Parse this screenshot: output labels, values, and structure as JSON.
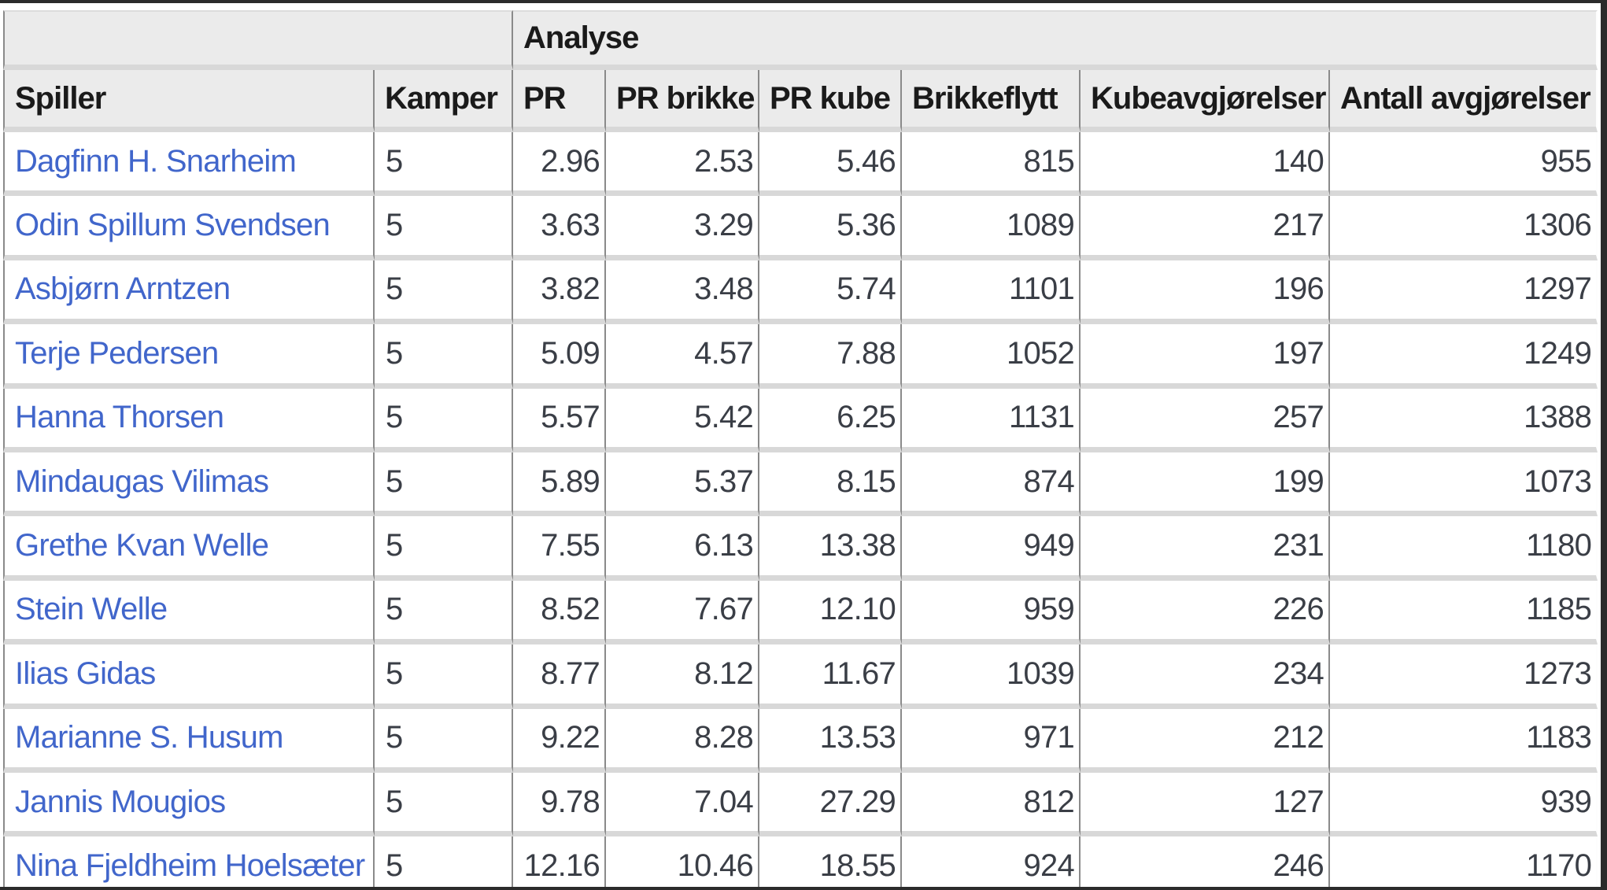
{
  "table": {
    "group_header": {
      "label": "Analyse"
    },
    "columns": [
      {
        "label": "Spiller"
      },
      {
        "label": "Kamper"
      },
      {
        "label": "PR"
      },
      {
        "label": "PR brikke"
      },
      {
        "label": "PR kube"
      },
      {
        "label": "Brikkeflytt"
      },
      {
        "label": "Kubeavgjørelser"
      },
      {
        "label": "Antall avgjørelser"
      }
    ],
    "rows": [
      {
        "spiller": "Dagfinn H. Snarheim",
        "kamper": "5",
        "pr": "2.96",
        "pr_brikke": "2.53",
        "pr_kube": "5.46",
        "brikkeflytt": "815",
        "kubeavgjorelser": "140",
        "antall_avgjorelser": "955"
      },
      {
        "spiller": "Odin Spillum Svendsen",
        "kamper": "5",
        "pr": "3.63",
        "pr_brikke": "3.29",
        "pr_kube": "5.36",
        "brikkeflytt": "1089",
        "kubeavgjorelser": "217",
        "antall_avgjorelser": "1306"
      },
      {
        "spiller": "Asbjørn Arntzen",
        "kamper": "5",
        "pr": "3.82",
        "pr_brikke": "3.48",
        "pr_kube": "5.74",
        "brikkeflytt": "1101",
        "kubeavgjorelser": "196",
        "antall_avgjorelser": "1297"
      },
      {
        "spiller": "Terje Pedersen",
        "kamper": "5",
        "pr": "5.09",
        "pr_brikke": "4.57",
        "pr_kube": "7.88",
        "brikkeflytt": "1052",
        "kubeavgjorelser": "197",
        "antall_avgjorelser": "1249"
      },
      {
        "spiller": "Hanna Thorsen",
        "kamper": "5",
        "pr": "5.57",
        "pr_brikke": "5.42",
        "pr_kube": "6.25",
        "brikkeflytt": "1131",
        "kubeavgjorelser": "257",
        "antall_avgjorelser": "1388"
      },
      {
        "spiller": "Mindaugas Vilimas",
        "kamper": "5",
        "pr": "5.89",
        "pr_brikke": "5.37",
        "pr_kube": "8.15",
        "brikkeflytt": "874",
        "kubeavgjorelser": "199",
        "antall_avgjorelser": "1073"
      },
      {
        "spiller": "Grethe Kvan Welle",
        "kamper": "5",
        "pr": "7.55",
        "pr_brikke": "6.13",
        "pr_kube": "13.38",
        "brikkeflytt": "949",
        "kubeavgjorelser": "231",
        "antall_avgjorelser": "1180"
      },
      {
        "spiller": "Stein Welle",
        "kamper": "5",
        "pr": "8.52",
        "pr_brikke": "7.67",
        "pr_kube": "12.10",
        "brikkeflytt": "959",
        "kubeavgjorelser": "226",
        "antall_avgjorelser": "1185"
      },
      {
        "spiller": "Ilias Gidas",
        "kamper": "5",
        "pr": "8.77",
        "pr_brikke": "8.12",
        "pr_kube": "11.67",
        "brikkeflytt": "1039",
        "kubeavgjorelser": "234",
        "antall_avgjorelser": "1273"
      },
      {
        "spiller": "Marianne S. Husum",
        "kamper": "5",
        "pr": "9.22",
        "pr_brikke": "8.28",
        "pr_kube": "13.53",
        "brikkeflytt": "971",
        "kubeavgjorelser": "212",
        "antall_avgjorelser": "1183"
      },
      {
        "spiller": "Jannis Mougios",
        "kamper": "5",
        "pr": "9.78",
        "pr_brikke": "7.04",
        "pr_kube": "27.29",
        "brikkeflytt": "812",
        "kubeavgjorelser": "127",
        "antall_avgjorelser": "939"
      },
      {
        "spiller": "Nina Fjeldheim Hoelsæter",
        "kamper": "5",
        "pr": "12.16",
        "pr_brikke": "10.46",
        "pr_kube": "18.55",
        "brikkeflytt": "924",
        "kubeavgjorelser": "246",
        "antall_avgjorelser": "1170"
      }
    ]
  },
  "colors": {
    "frame": "#2b2b2b",
    "header_background": "#ebebeb",
    "row_divider": "#d8d8d8",
    "column_divider": "#8a8a8a",
    "link": "#4166cb",
    "header_text": "#1a1a1a",
    "cell_text": "#3a3e46"
  }
}
